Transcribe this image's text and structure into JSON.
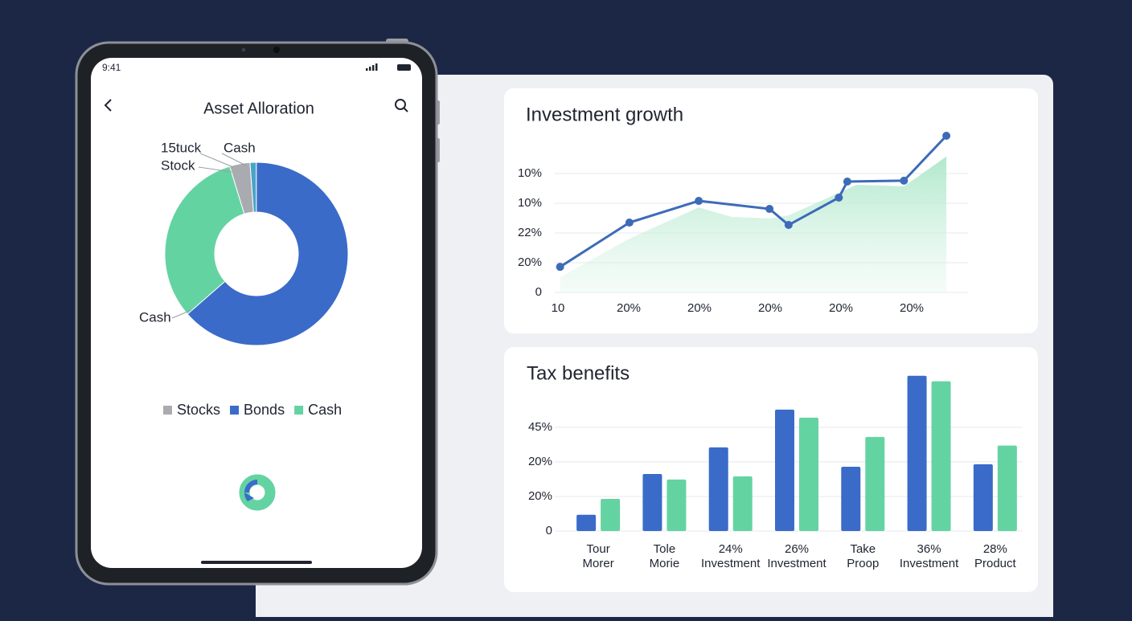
{
  "status_bar": {
    "time": "9:41"
  },
  "header": {
    "title": "Asset Alloration"
  },
  "chart_data": [
    {
      "type": "pie",
      "categories": [
        "Stocks",
        null,
        "Bonds",
        "Cash"
      ],
      "values": [
        3.6,
        1.1,
        63.6,
        31.7
      ],
      "colors": [
        "#a9abb0",
        "#4aa3c9",
        "#3a6bc9",
        "#64d3a2"
      ],
      "annotations": [
        "15tuck",
        "Stock",
        "Cash",
        "Cash"
      ]
    },
    {
      "type": "line",
      "title": "Investment growth",
      "xlim": [
        -0.05,
        5.8
      ],
      "xticks": [
        0,
        1,
        2,
        3,
        4,
        5
      ],
      "xtick_labels": [
        "10",
        "20%",
        "20%",
        "20%",
        "20%",
        "20%"
      ],
      "ylim": [
        0,
        5.5
      ],
      "yticks": [
        0,
        1,
        2,
        3,
        4
      ],
      "ytick_labels": [
        "0",
        "20%",
        "22%",
        "10%",
        "10%"
      ],
      "grid": true,
      "series": [
        {
          "kind": "area",
          "color": "#a8e6c6",
          "x": [
            0.03,
            1.01,
            1.99,
            2.45,
            2.99,
            3.26,
            3.97,
            4.22,
            4.89,
            5.49
          ],
          "values": [
            0.51,
            1.81,
            2.86,
            2.54,
            2.49,
            2.59,
            3.35,
            3.62,
            3.57,
            4.57
          ]
        },
        {
          "kind": "line",
          "color": "#3d6bb8",
          "x": [
            0.03,
            1.01,
            1.99,
            2.99,
            3.26,
            3.97,
            4.09,
            4.89,
            5.49
          ],
          "values": [
            0.86,
            2.35,
            3.08,
            2.81,
            2.27,
            3.19,
            3.73,
            3.76,
            5.27
          ]
        }
      ]
    },
    {
      "type": "bar",
      "title": "Tax benefits",
      "categories": [
        [
          "Tour",
          "Morer"
        ],
        [
          "Tole",
          "Morie"
        ],
        [
          "24%",
          "Investment"
        ],
        [
          "26%",
          "Investment"
        ],
        [
          "Take",
          "Proop"
        ],
        [
          "36%",
          "Investment"
        ],
        [
          "28%",
          "Product"
        ]
      ],
      "ylim": [
        0,
        4.6
      ],
      "yticks": [
        0,
        1,
        2,
        3
      ],
      "ytick_labels": [
        "0",
        "20%",
        "20%",
        "45%"
      ],
      "grid": true,
      "series": [
        {
          "color": "#3a6bc9",
          "values": [
            0.47,
            1.65,
            2.42,
            3.51,
            1.86,
            4.49,
            1.93
          ]
        },
        {
          "color": "#64d3a2",
          "values": [
            0.93,
            1.49,
            1.58,
            3.28,
            2.72,
            4.33,
            2.47
          ]
        }
      ]
    }
  ]
}
